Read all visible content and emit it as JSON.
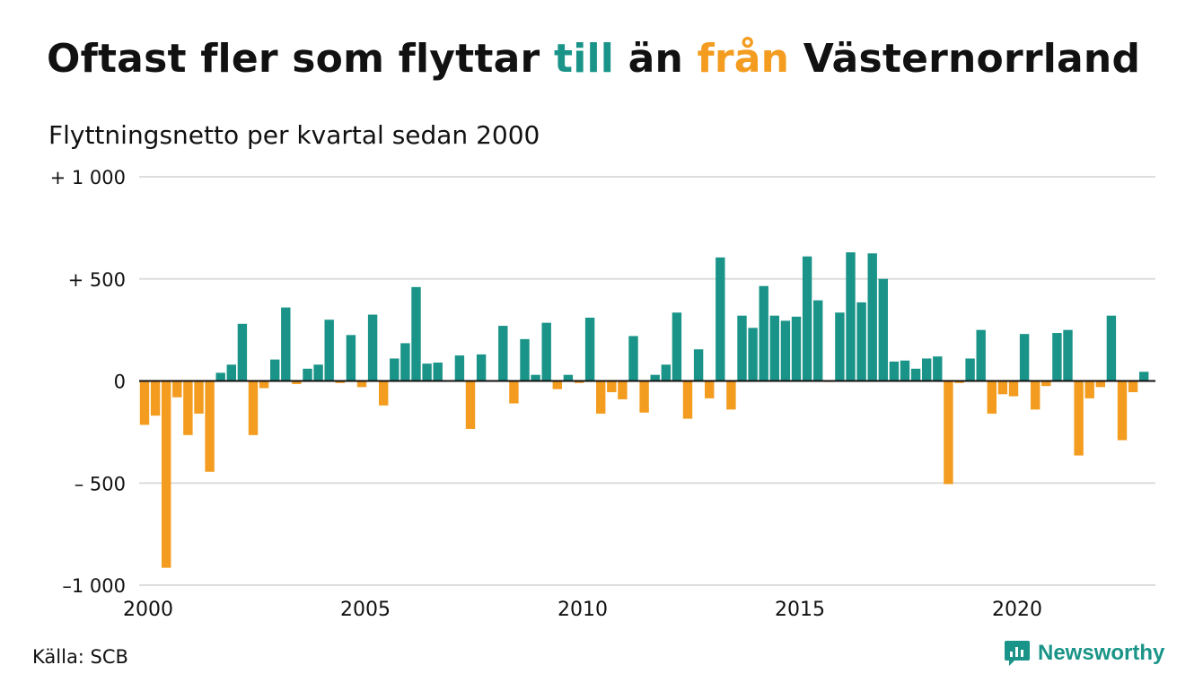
{
  "title": {
    "part1": "Oftast fler som flyttar ",
    "till": "till",
    "part2": " än ",
    "fran": "från",
    "part3": " Västernorrland"
  },
  "subtitle": "Flyttningsnetto per kvartal sedan 2000",
  "source": "Källa: SCB",
  "brand": {
    "name": "Newsworthy",
    "icon": "newsworthy-logo-icon"
  },
  "colors": {
    "positive": "#1a9488",
    "negative": "#f39c1f",
    "grid": "#dddddd",
    "baseline": "#111111"
  },
  "chart_data": {
    "type": "bar",
    "title": "Oftast fler som flyttar till än från Västernorrland",
    "subtitle": "Flyttningsnetto per kvartal sedan 2000",
    "xlabel": "",
    "ylabel": "",
    "ylim": [
      -1000,
      1000
    ],
    "yticks": [
      1000,
      500,
      0,
      -500,
      -1000
    ],
    "ytick_labels": [
      "+ 1 000",
      "+   500",
      "0",
      "–  500",
      "–1 000"
    ],
    "xticks": [
      "2000",
      "2005",
      "2010",
      "2015",
      "2020"
    ],
    "grid": true,
    "legend": "none",
    "x_start": "2000 Q1",
    "values": [
      -215,
      -170,
      -915,
      -80,
      -265,
      -160,
      -445,
      40,
      80,
      280,
      -265,
      -35,
      105,
      360,
      -15,
      60,
      80,
      300,
      -10,
      225,
      -30,
      325,
      -120,
      110,
      185,
      460,
      85,
      90,
      0,
      125,
      -235,
      130,
      0,
      270,
      -110,
      205,
      30,
      285,
      -40,
      30,
      -10,
      310,
      -160,
      -55,
      -90,
      220,
      -155,
      30,
      80,
      335,
      -185,
      155,
      -85,
      605,
      -140,
      320,
      260,
      465,
      320,
      295,
      315,
      610,
      395,
      -5,
      335,
      630,
      385,
      625,
      500,
      95,
      100,
      60,
      110,
      120,
      -505,
      -10,
      110,
      250,
      -160,
      -65,
      -75,
      230,
      -140,
      -25,
      235,
      250,
      -365,
      -85,
      -30,
      320,
      -290,
      -55,
      45
    ]
  }
}
